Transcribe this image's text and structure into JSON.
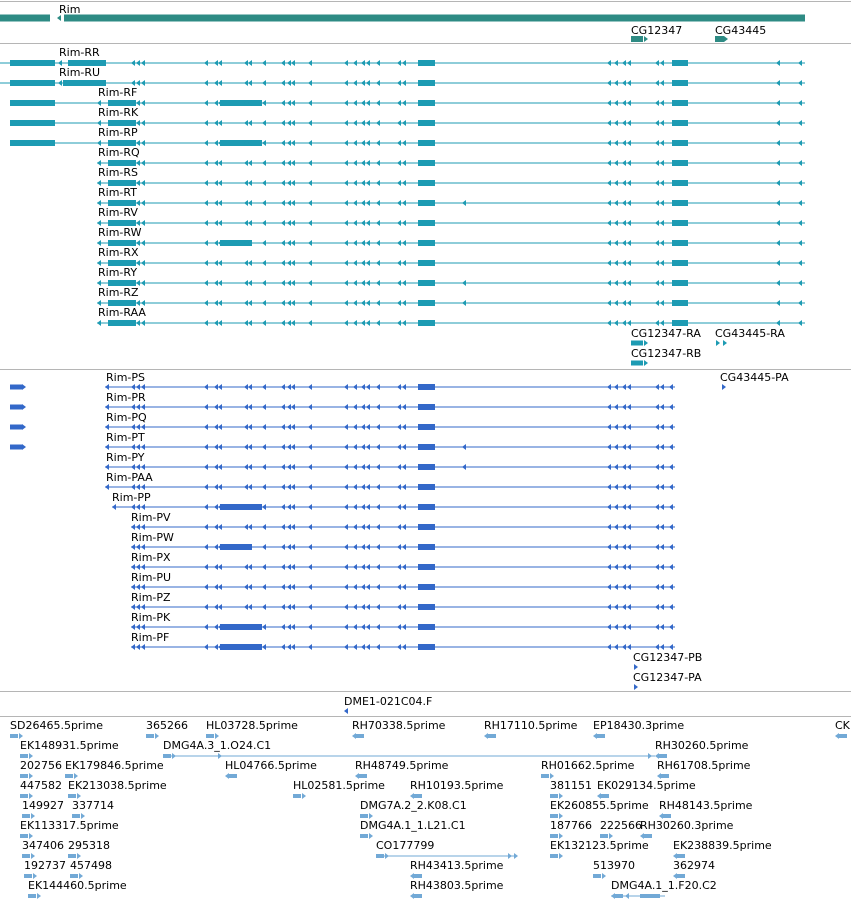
{
  "colors": {
    "gene": "#2e8b84",
    "transcript": "#1d9bb3",
    "protein": "#3368c9",
    "est": "#72a9d6",
    "divider": "#b5b5b5",
    "text": "#000000"
  },
  "gene_track": {
    "genes": [
      {
        "label": "Rim",
        "strand": "-"
      },
      {
        "label": "CG12347",
        "strand": "+"
      },
      {
        "label": "CG43445",
        "strand": "+"
      }
    ]
  },
  "transcript_track": {
    "rim_transcripts": [
      "Rim-RR",
      "Rim-RU",
      "Rim-RF",
      "Rim-RK",
      "Rim-RP",
      "Rim-RQ",
      "Rim-RS",
      "Rim-RT",
      "Rim-RV",
      "Rim-RW",
      "Rim-RX",
      "Rim-RY",
      "Rim-RZ",
      "Rim-RAA"
    ],
    "other_transcripts": [
      "CG12347-RA",
      "CG43445-RA",
      "CG12347-RB"
    ]
  },
  "protein_track": {
    "rim_proteins": [
      "Rim-PS",
      "Rim-PR",
      "Rim-PQ",
      "Rim-PT",
      "Rim-PY",
      "Rim-PAA",
      "Rim-PP",
      "Rim-PV",
      "Rim-PW",
      "Rim-PX",
      "Rim-PU",
      "Rim-PZ",
      "Rim-PK",
      "Rim-PF"
    ],
    "other_proteins": [
      "CG43445-PA",
      "CG12347-PB",
      "CG12347-PA"
    ]
  },
  "clone_track": {
    "label": "DME1-021C04.F"
  },
  "est_track": {
    "labels": [
      "SD26465.5prime",
      "365266",
      "HL03728.5prime",
      "RH70338.5prime",
      "RH17110.5prime",
      "EP18430.3prime",
      "CK",
      "EK148931.5prime",
      "DMG4A.3_1.O24.C1",
      "RH30260.5prime",
      "202756",
      "EK179846.5prime",
      "HL04766.5prime",
      "RH48749.5prime",
      "RH01662.5prime",
      "RH61708.5prime",
      "447582",
      "EK213038.5prime",
      "HL02581.5prime",
      "RH10193.5prime",
      "381151",
      "EK029134.5prime",
      "149927",
      "337714",
      "DMG7A.2_2.K08.C1",
      "EK260855.5prime",
      "RH48143.5prime",
      "EK113317.5prime",
      "DMG4A.1_1.L21.C1",
      "187766",
      "222566",
      "RH30260.3prime",
      "347406",
      "295318",
      "CO177799",
      "EK132123.5prime",
      "EK238839.5prime",
      "192737",
      "457498",
      "RH43413.5prime",
      "513970",
      "362974",
      "EK144460.5prime",
      "RH43803.5prime",
      "DMG4A.1_1.F20.C2"
    ]
  }
}
